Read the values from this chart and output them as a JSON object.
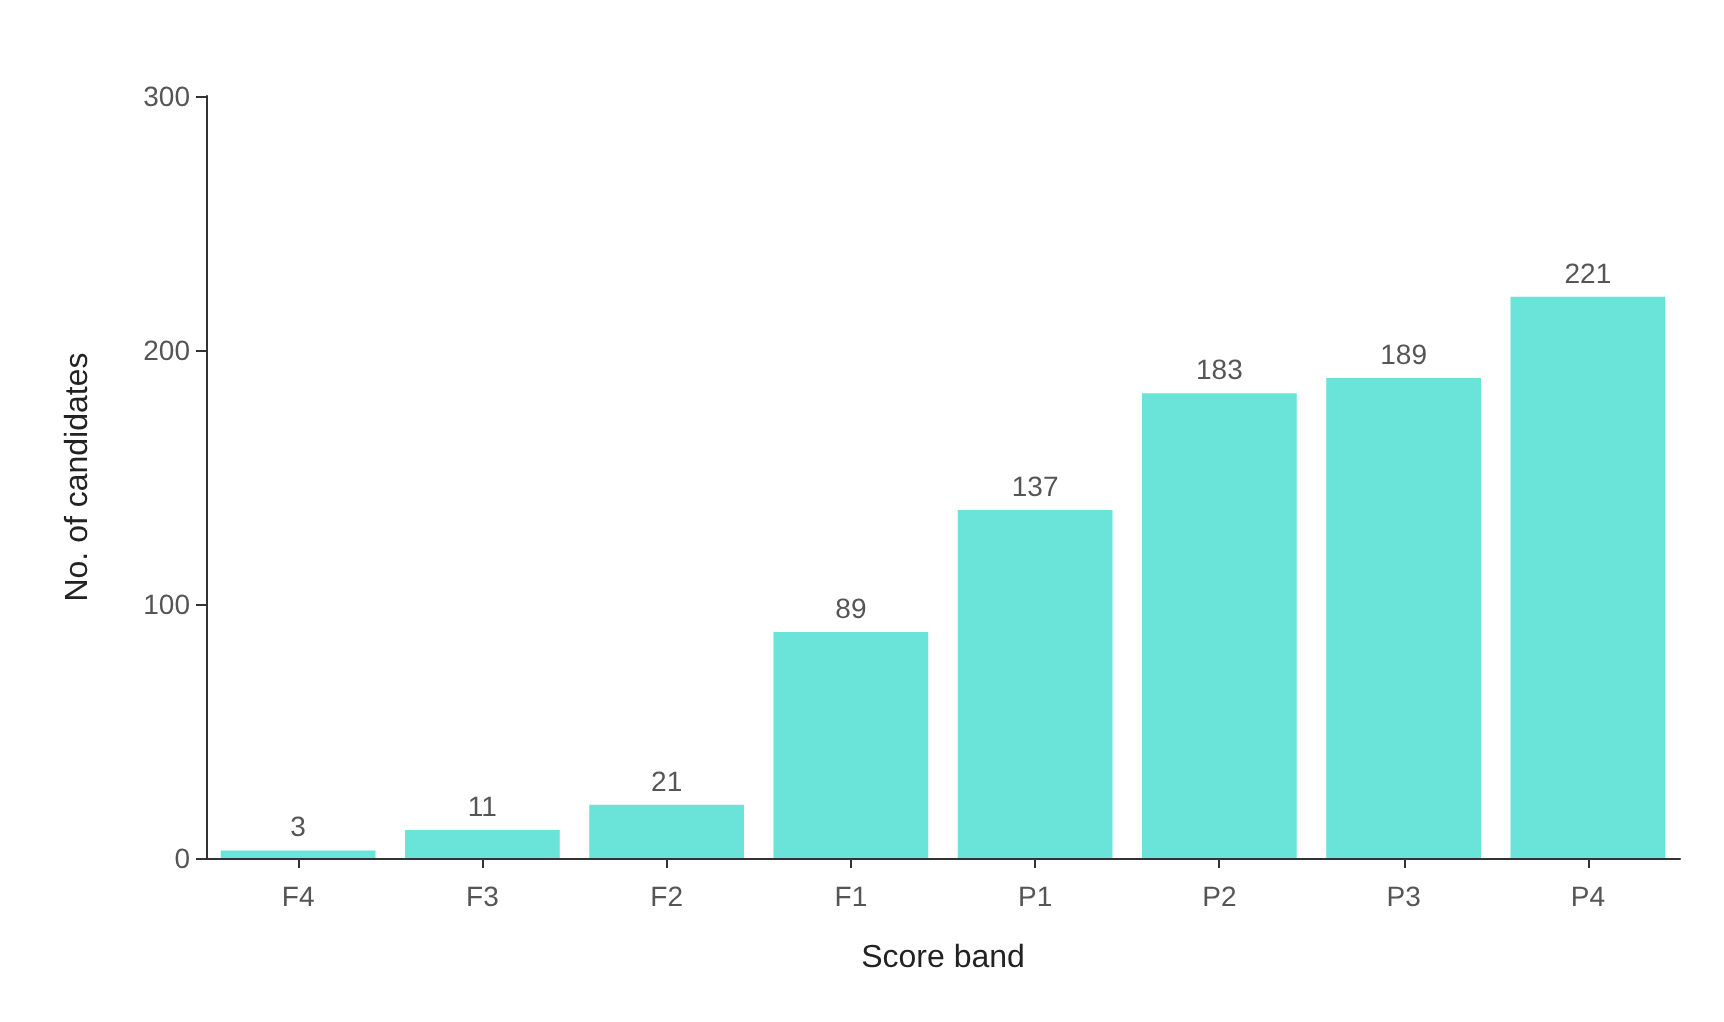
{
  "chart_data": {
    "type": "bar",
    "xlabel": "Score band",
    "ylabel": "No. of candidates",
    "categories": [
      "F4",
      "F3",
      "F2",
      "F1",
      "P1",
      "P2",
      "P3",
      "P4"
    ],
    "values": [
      3,
      11,
      21,
      89,
      137,
      183,
      189,
      221
    ],
    "color": "#6ae3d9",
    "ylim": [
      0,
      300
    ],
    "yticks": [
      0,
      100,
      200,
      300
    ],
    "grid": false,
    "data_labels": true
  }
}
